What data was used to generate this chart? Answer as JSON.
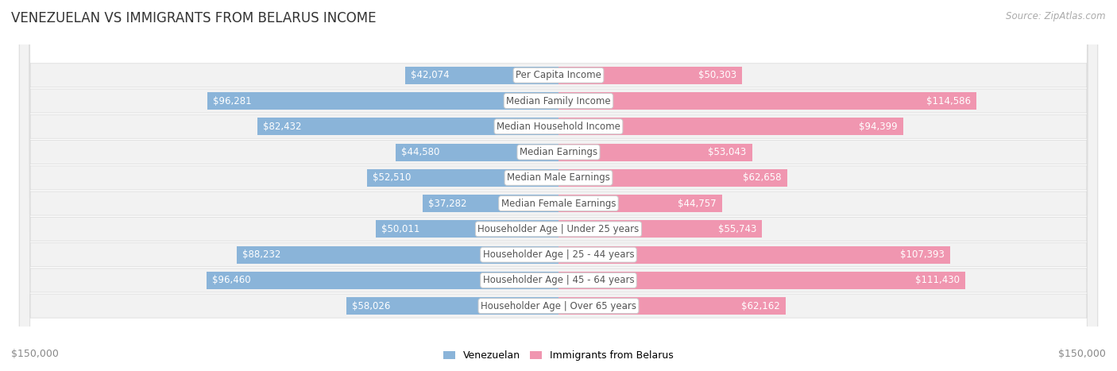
{
  "title": "VENEZUELAN VS IMMIGRANTS FROM BELARUS INCOME",
  "source": "Source: ZipAtlas.com",
  "categories": [
    "Per Capita Income",
    "Median Family Income",
    "Median Household Income",
    "Median Earnings",
    "Median Male Earnings",
    "Median Female Earnings",
    "Householder Age | Under 25 years",
    "Householder Age | 25 - 44 years",
    "Householder Age | 45 - 64 years",
    "Householder Age | Over 65 years"
  ],
  "venezuelan_values": [
    42074,
    96281,
    82432,
    44580,
    52510,
    37282,
    50011,
    88232,
    96460,
    58026
  ],
  "belarus_values": [
    50303,
    114586,
    94399,
    53043,
    62658,
    44757,
    55743,
    107393,
    111430,
    62162
  ],
  "max_value": 150000,
  "venezuelan_color": "#8ab4d9",
  "belarus_color": "#f096b0",
  "row_bg_even": "#f5f5f5",
  "row_bg_odd": "#ebebeb",
  "xlabel_left": "$150,000",
  "xlabel_right": "$150,000",
  "legend_venezuelan": "Venezuelan",
  "legend_belarus": "Immigrants from Belarus",
  "title_fontsize": 12,
  "source_fontsize": 8.5,
  "bar_label_fontsize": 8.5,
  "category_fontsize": 8.5,
  "axis_label_fontsize": 9,
  "legend_fontsize": 9,
  "inside_label_threshold": 0.2
}
